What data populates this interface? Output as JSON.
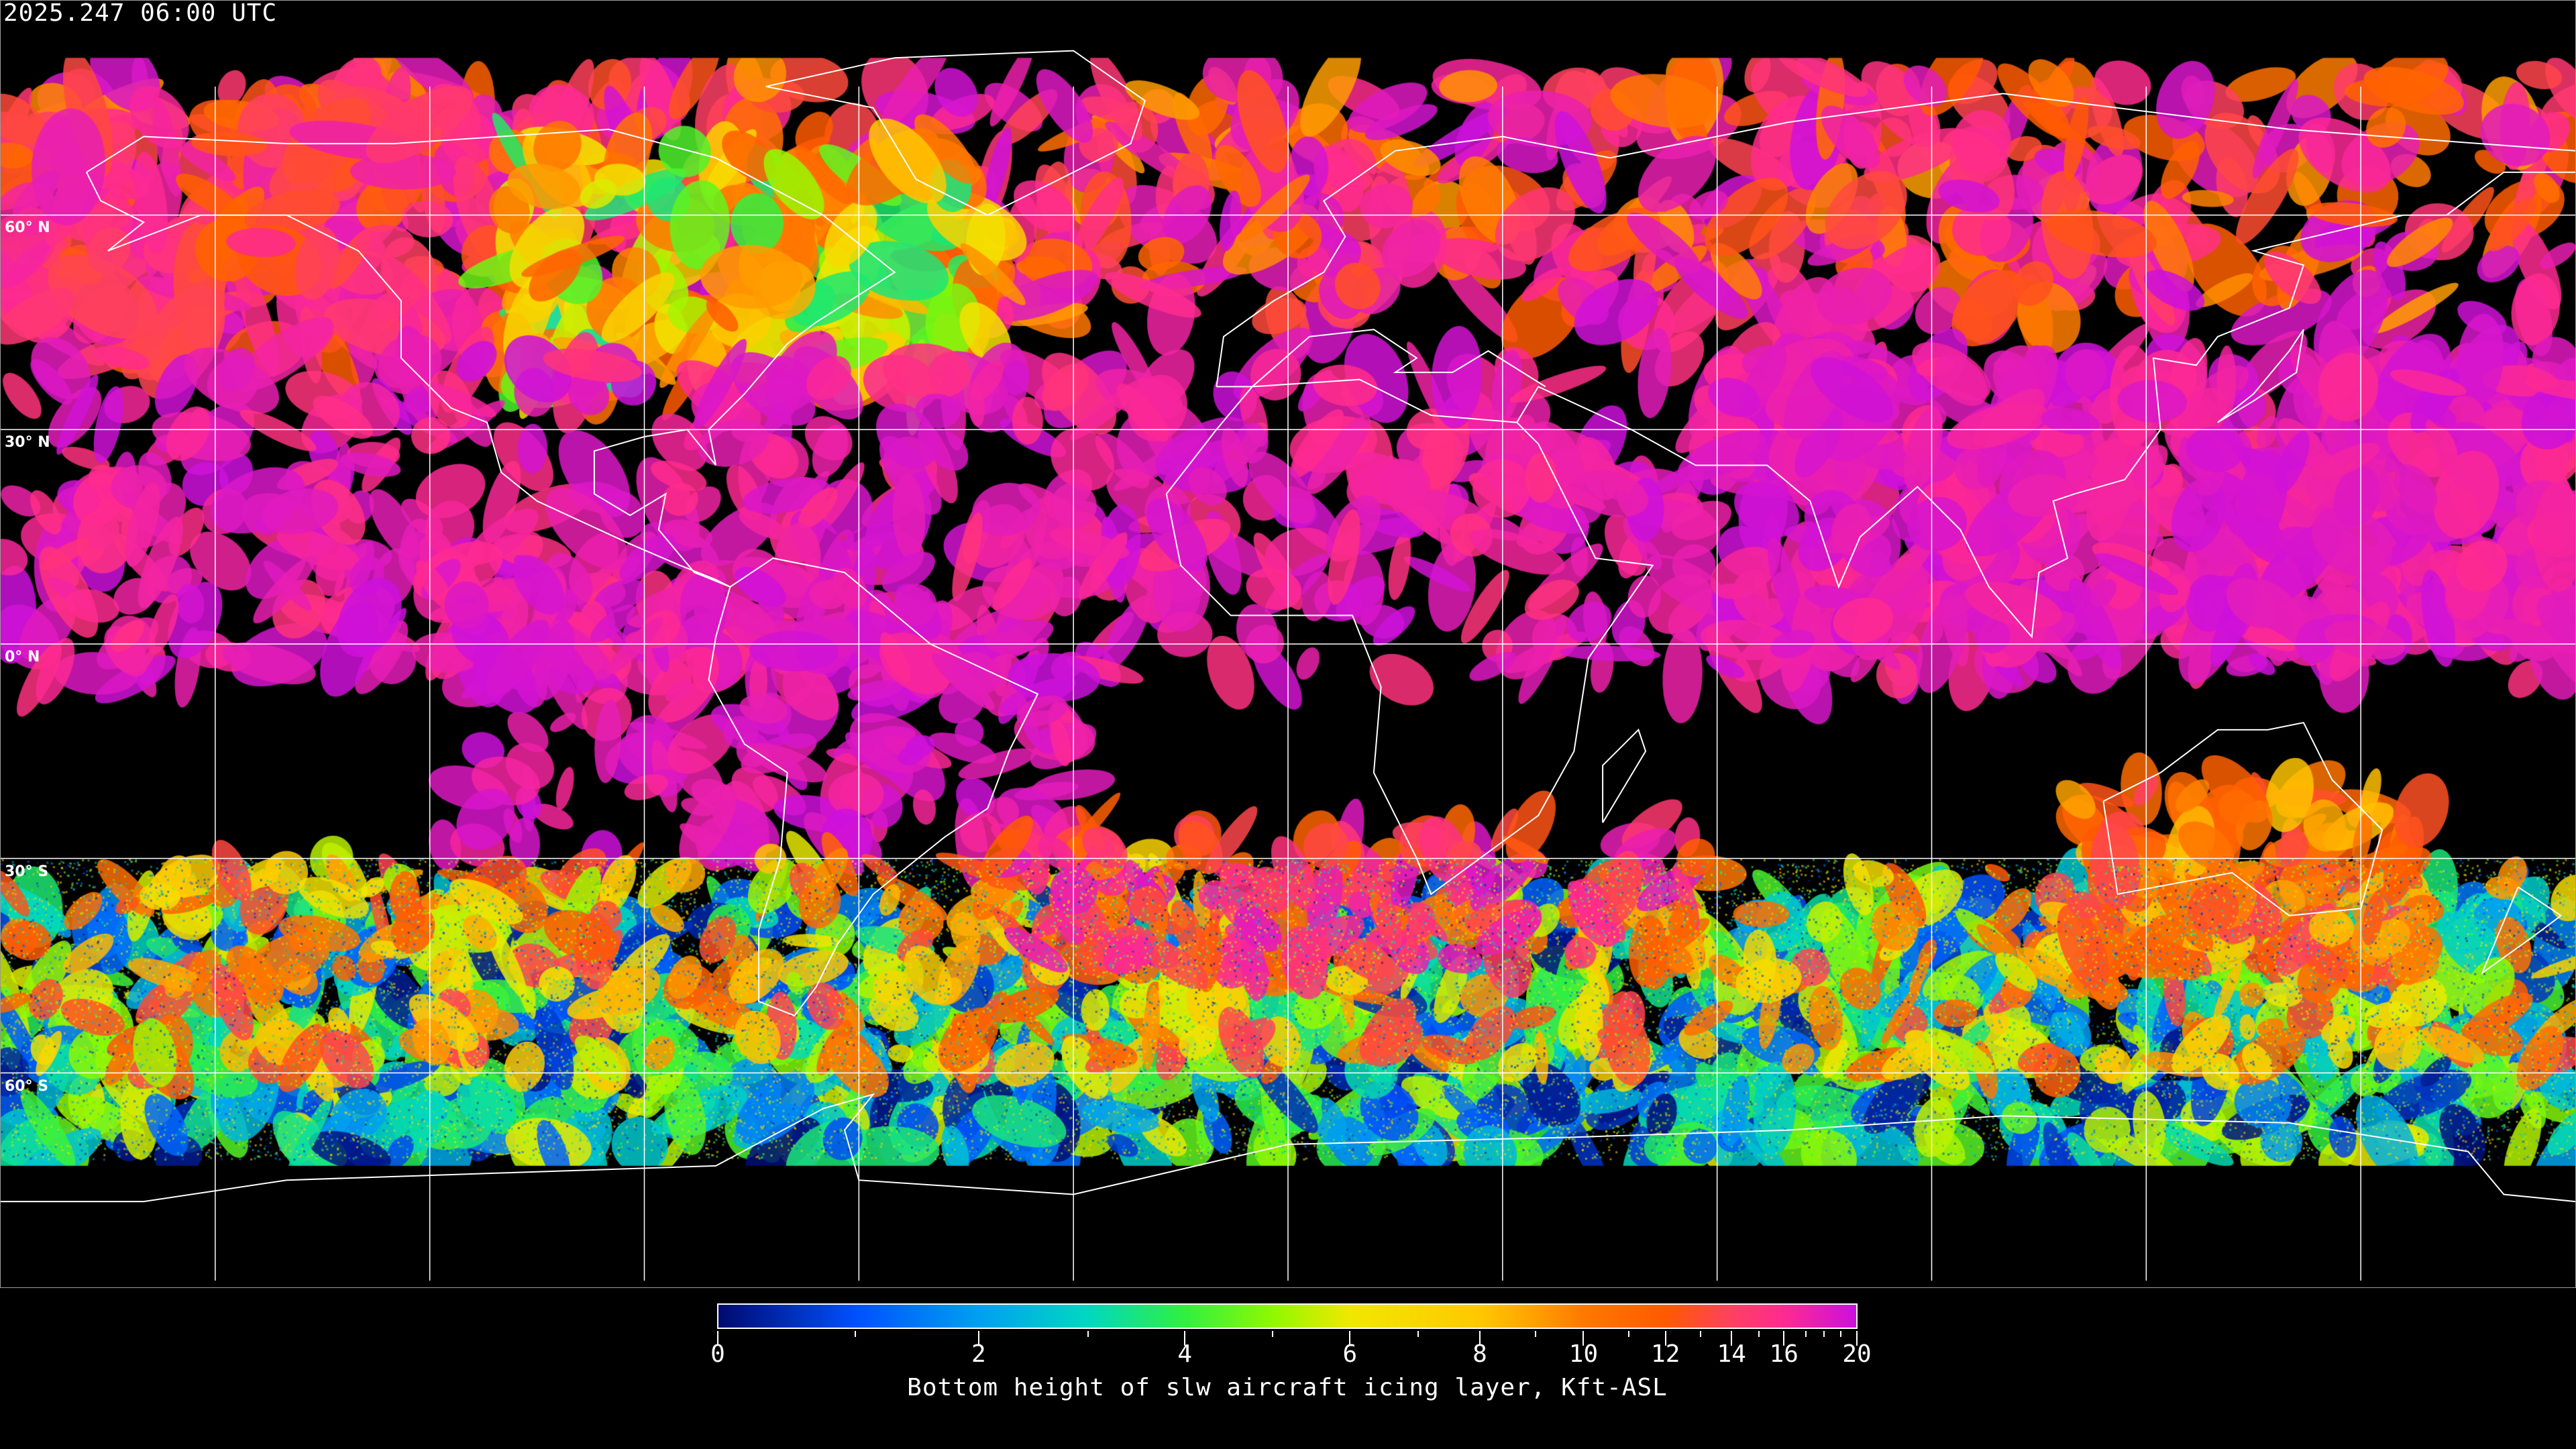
{
  "title": "2025.247 06:00 UTC",
  "map": {
    "projection": "equirectangular",
    "gridlines": "every 30 degrees",
    "lat_labels": [
      "60° N",
      "30° N",
      "0° N",
      "30° S",
      "60° S"
    ],
    "coastline_color": "#ffffff",
    "background": "#000000"
  },
  "colorbar": {
    "caption": "Bottom height of slw aircraft icing layer, Kft-ASL",
    "range": [
      0,
      20
    ],
    "major_tick_labels": [
      "0",
      "2",
      "4",
      "6",
      "8",
      "10",
      "12",
      "14",
      "16",
      "20"
    ],
    "minor_ticks": [
      1,
      3,
      5,
      7,
      9,
      11,
      13,
      15,
      17,
      18,
      19
    ],
    "colors": [
      "#000a6e",
      "#0050ff",
      "#00a0f0",
      "#00d8c0",
      "#30f040",
      "#90f800",
      "#f0e800",
      "#ffc800",
      "#ffa000",
      "#ff7800",
      "#ff5a00",
      "#ff4060",
      "#ff2a90",
      "#cc10dd"
    ]
  }
}
